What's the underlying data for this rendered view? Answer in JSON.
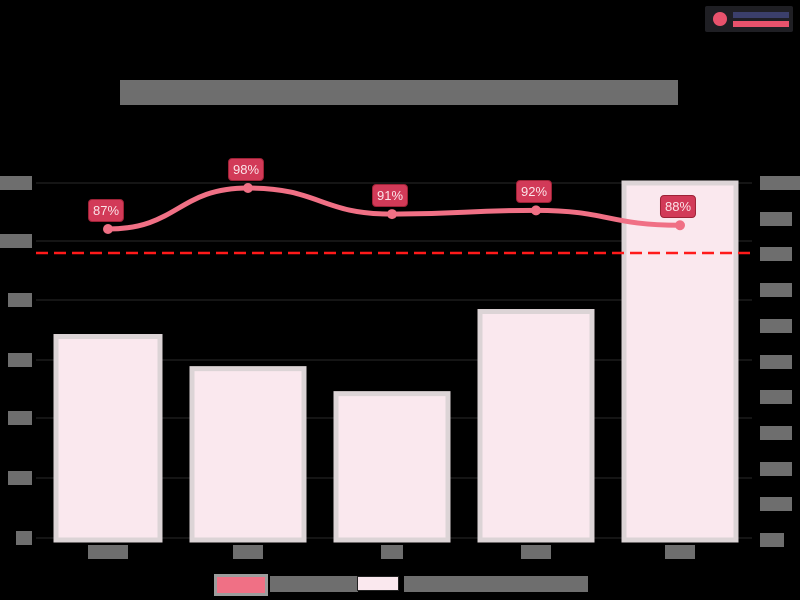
{
  "header": {
    "title": "[obscured title]",
    "logo": "brand-logo"
  },
  "colors": {
    "background": "#000000",
    "bar_fill": "#fae8ee",
    "bar_border": "#dcd4d6",
    "line": "#f07085",
    "label_bg": "#d23a58",
    "target_line": "#ff1a1a"
  },
  "chart_data": {
    "type": "bar+line",
    "title": "[obscured]",
    "categories": [
      "[cat1]",
      "[cat2]",
      "[cat3]",
      "[cat4]",
      "[cat5]"
    ],
    "series": [
      {
        "name": "[line series - obscured]",
        "type": "line",
        "axis": "left",
        "values": [
          87,
          98,
          91,
          92,
          88
        ],
        "labels": [
          "87%",
          "98%",
          "91%",
          "92%",
          "88%"
        ]
      },
      {
        "name": "[bar series - obscured]",
        "type": "bar",
        "axis": "right",
        "values": [
          5.7,
          4.8,
          4.1,
          6.4,
          10.0
        ]
      }
    ],
    "reference_line": {
      "style": "dashed",
      "color": "#ff1a1a",
      "approx_left_axis_value": 85
    },
    "left_axis": {
      "tick_count": 7,
      "labels_obscured": true
    },
    "right_axis": {
      "tick_count": 11,
      "labels_obscured": true
    },
    "legend_position": "bottom",
    "grid": true
  },
  "legend": {
    "items": [
      {
        "label": "[obscured]",
        "type": "line"
      },
      {
        "label": "[obscured]",
        "type": "bar"
      }
    ]
  }
}
